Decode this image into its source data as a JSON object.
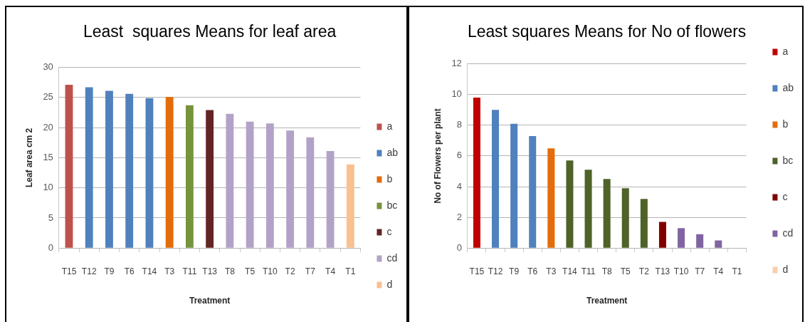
{
  "chart_data": [
    {
      "type": "bar",
      "title": "Least  squares Means for leaf area",
      "xlabel": "Treatment",
      "ylabel": "Leaf area cm 2",
      "categories": [
        "T15",
        "T12",
        "T9",
        "T6",
        "T14",
        "T3",
        "T11",
        "T13",
        "T8",
        "T5",
        "T10",
        "T2",
        "T7",
        "T4",
        "T1"
      ],
      "series": [
        {
          "name": "a",
          "color": "#c0504d",
          "values": [
            27.1,
            null,
            null,
            null,
            null,
            null,
            null,
            null,
            null,
            null,
            null,
            null,
            null,
            null,
            null
          ]
        },
        {
          "name": "ab",
          "color": "#4f81bd",
          "values": [
            null,
            26.7,
            26.1,
            25.6,
            24.9,
            null,
            null,
            null,
            null,
            null,
            null,
            null,
            null,
            null,
            null
          ]
        },
        {
          "name": "b",
          "color": "#e46c0a",
          "values": [
            null,
            null,
            null,
            null,
            null,
            25.1,
            null,
            null,
            null,
            null,
            null,
            null,
            null,
            null,
            null
          ]
        },
        {
          "name": "bc",
          "color": "#77933c",
          "values": [
            null,
            null,
            null,
            null,
            null,
            null,
            23.7,
            null,
            null,
            null,
            null,
            null,
            null,
            null,
            null
          ]
        },
        {
          "name": "c",
          "color": "#632523",
          "values": [
            null,
            null,
            null,
            null,
            null,
            null,
            null,
            22.9,
            null,
            null,
            null,
            null,
            null,
            null,
            null
          ]
        },
        {
          "name": "cd",
          "color": "#b3a2c7",
          "values": [
            null,
            null,
            null,
            null,
            null,
            null,
            null,
            null,
            22.3,
            21.0,
            20.7,
            19.5,
            18.4,
            16.1,
            null
          ]
        },
        {
          "name": "d",
          "color": "#fac090",
          "values": [
            null,
            null,
            null,
            null,
            null,
            null,
            null,
            null,
            null,
            null,
            null,
            null,
            null,
            null,
            13.9
          ]
        }
      ],
      "stacked": true,
      "ylim": [
        0,
        30
      ],
      "yticks": [
        0,
        5,
        10,
        15,
        20,
        25,
        30
      ],
      "grid": "y",
      "legend": "right"
    },
    {
      "type": "bar",
      "title": "Least squares Means for No of flowers",
      "xlabel": "Treatment",
      "ylabel": "No of Flowers per plant",
      "categories": [
        "T15",
        "T12",
        "T9",
        "T6",
        "T3",
        "T14",
        "T11",
        "T8",
        "T5",
        "T2",
        "T13",
        "T10",
        "T7",
        "T4",
        "T1"
      ],
      "series": [
        {
          "name": "a",
          "color": "#c00000",
          "values": [
            9.8,
            null,
            null,
            null,
            null,
            null,
            null,
            null,
            null,
            null,
            null,
            null,
            null,
            null,
            null
          ]
        },
        {
          "name": "ab",
          "color": "#4f81bd",
          "values": [
            null,
            9.0,
            8.1,
            7.3,
            null,
            null,
            null,
            null,
            null,
            null,
            null,
            null,
            null,
            null,
            null
          ]
        },
        {
          "name": "b",
          "color": "#e46c0a",
          "values": [
            null,
            null,
            null,
            null,
            6.5,
            null,
            null,
            null,
            null,
            null,
            null,
            null,
            null,
            null,
            null
          ]
        },
        {
          "name": "bc",
          "color": "#4f6228",
          "values": [
            null,
            null,
            null,
            null,
            null,
            5.7,
            5.1,
            4.5,
            3.9,
            3.2,
            null,
            null,
            null,
            null,
            null
          ]
        },
        {
          "name": "c",
          "color": "#800000",
          "values": [
            null,
            null,
            null,
            null,
            null,
            null,
            null,
            null,
            null,
            null,
            1.7,
            null,
            null,
            null,
            null
          ]
        },
        {
          "name": "cd",
          "color": "#8064a2",
          "values": [
            null,
            null,
            null,
            null,
            null,
            null,
            null,
            null,
            null,
            null,
            null,
            1.3,
            0.9,
            0.5,
            null
          ]
        },
        {
          "name": "d",
          "color": "#f9cfac",
          "values": [
            null,
            null,
            null,
            null,
            null,
            null,
            null,
            null,
            null,
            null,
            null,
            null,
            null,
            null,
            0
          ]
        }
      ],
      "stacked": true,
      "ylim": [
        0,
        12
      ],
      "yticks": [
        0,
        2,
        4,
        6,
        8,
        10,
        12
      ],
      "grid": "y",
      "legend": "right"
    }
  ]
}
